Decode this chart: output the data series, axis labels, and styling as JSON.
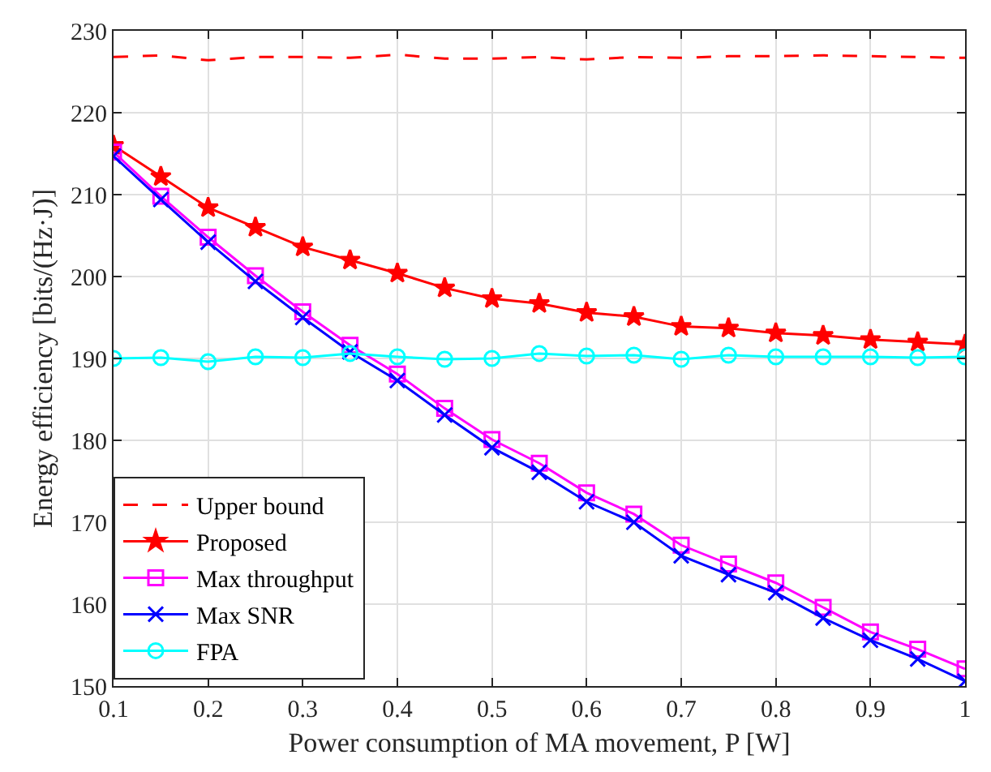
{
  "chart_data": {
    "type": "line",
    "xlabel": "Power consumption of MA movement, P [W]",
    "ylabel": "Energy efficiency [bits/(Hz·J)]",
    "x": [
      0.1,
      0.15,
      0.2,
      0.25,
      0.3,
      0.35,
      0.4,
      0.45,
      0.5,
      0.55,
      0.6,
      0.65,
      0.7,
      0.75,
      0.8,
      0.85,
      0.9,
      0.95,
      1
    ],
    "series": [
      {
        "name": "Upper bound",
        "color": "#ff0000",
        "line_style": "dashed",
        "marker": "none",
        "values": [
          226.8,
          227.0,
          226.4,
          226.8,
          226.8,
          226.7,
          227.1,
          226.6,
          226.6,
          226.8,
          226.5,
          226.8,
          226.7,
          226.9,
          226.9,
          227.0,
          226.9,
          226.8,
          226.7
        ]
      },
      {
        "name": "Proposed",
        "color": "#ff0000",
        "line_style": "solid",
        "marker": "star",
        "values": [
          216,
          212.2,
          208.4,
          206,
          203.6,
          202,
          200.4,
          198.6,
          197.3,
          196.7,
          195.6,
          195.1,
          193.9,
          193.7,
          193.1,
          192.8,
          192.3,
          192,
          191.7
        ]
      },
      {
        "name": "Max throughput",
        "color": "#ff00ff",
        "line_style": "solid",
        "marker": "square",
        "values": [
          215.2,
          209.8,
          204.8,
          200.1,
          195.7,
          191.6,
          188.1,
          183.9,
          180.1,
          177.2,
          173.6,
          171,
          167.2,
          164.9,
          162.6,
          159.6,
          156.6,
          154.5,
          152.1
        ]
      },
      {
        "name": "Max SNR",
        "color": "#0000ff",
        "line_style": "solid",
        "marker": "cross",
        "values": [
          214.7,
          209.4,
          204.2,
          199.4,
          195,
          190.8,
          187.3,
          183.1,
          179.1,
          176.1,
          172.5,
          170,
          165.9,
          163.6,
          161.4,
          158.3,
          155.6,
          153.3,
          150.6
        ]
      },
      {
        "name": "FPA",
        "color": "#00ffff",
        "line_style": "solid",
        "marker": "circle",
        "values": [
          190,
          190.1,
          189.6,
          190.2,
          190.1,
          190.6,
          190.2,
          189.9,
          190,
          190.6,
          190.3,
          190.4,
          189.9,
          190.4,
          190.2,
          190.2,
          190.2,
          190.1,
          190.2
        ]
      }
    ],
    "xlim": [
      0.1,
      1
    ],
    "xticks": [
      0.1,
      0.2,
      0.3,
      0.4,
      0.5,
      0.6,
      0.7,
      0.8,
      0.9,
      1
    ],
    "ylim": [
      150,
      230
    ],
    "yticks": [
      150,
      160,
      170,
      180,
      190,
      200,
      210,
      220,
      230
    ],
    "grid": true,
    "legend": "bottom left"
  }
}
